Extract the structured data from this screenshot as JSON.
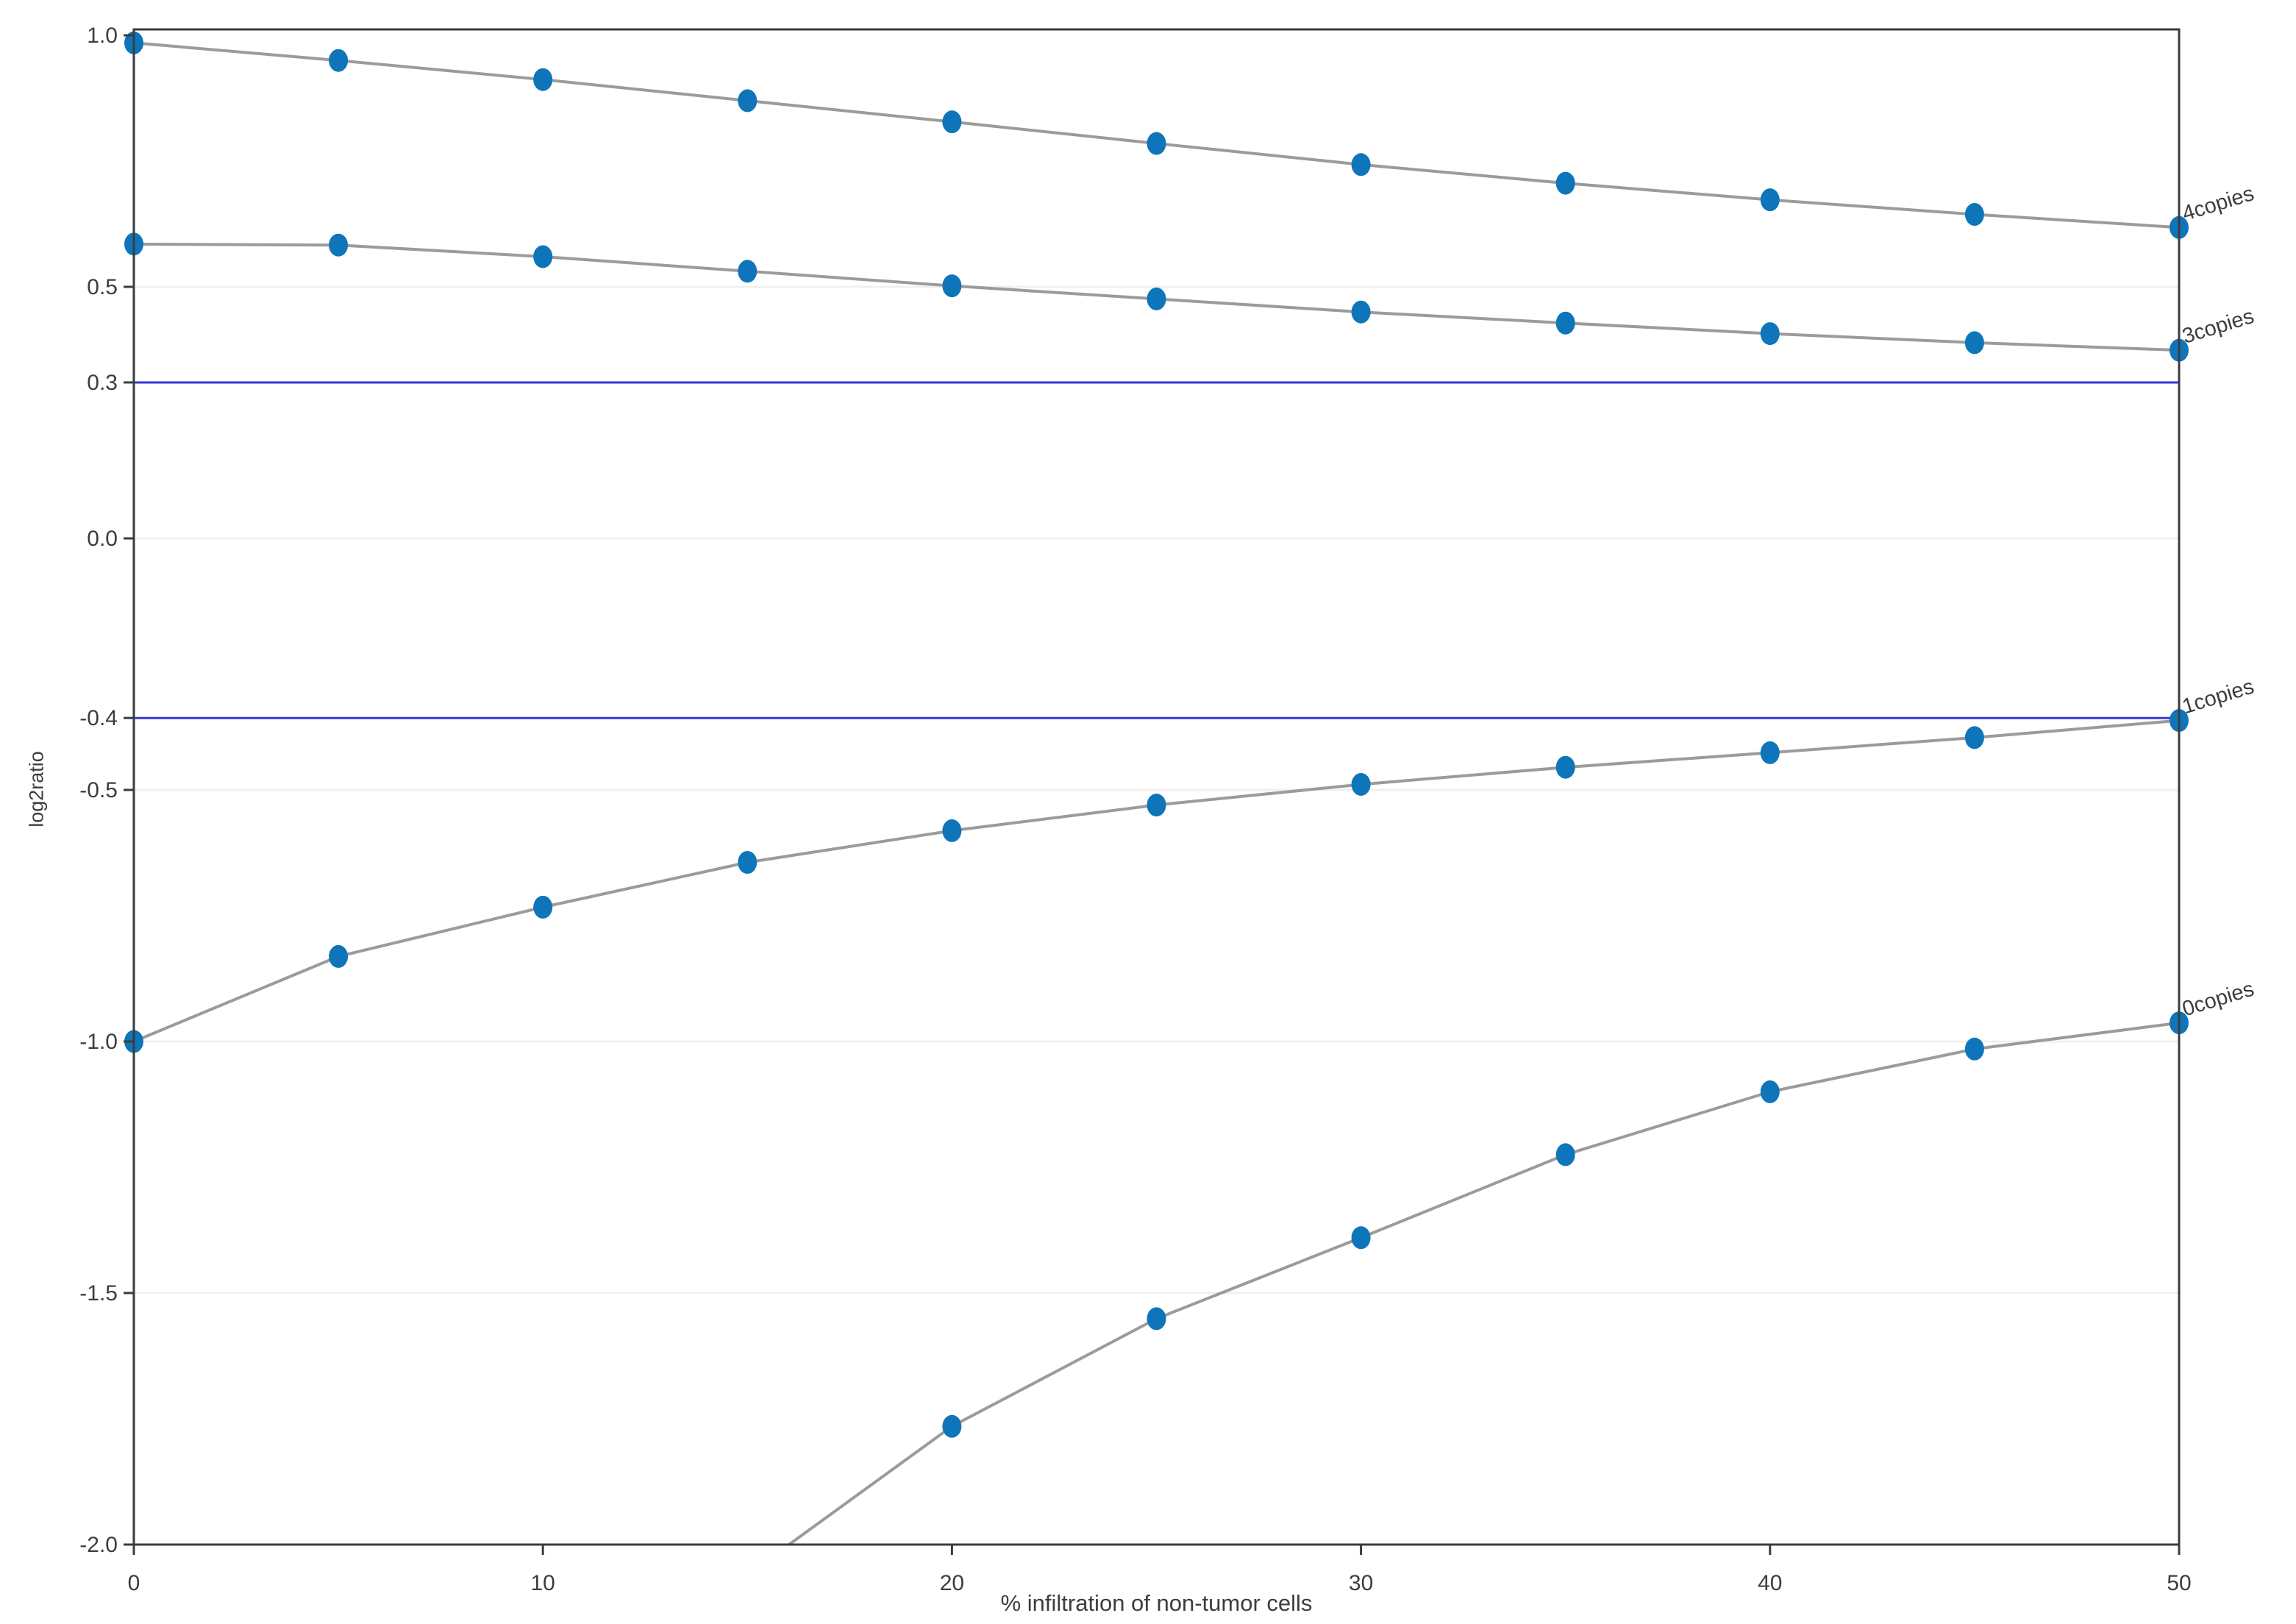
{
  "chart_data": {
    "type": "line",
    "title": "",
    "xlabel": "% infiltration of non-tumor cells",
    "ylabel": "log2ratio",
    "x": [
      0,
      5,
      10,
      15,
      20,
      25,
      30,
      35,
      40,
      45,
      50
    ],
    "xlim": [
      0,
      50
    ],
    "ylim": [
      -2.0,
      1.01
    ],
    "xticks": [
      0,
      10,
      20,
      30,
      40,
      50
    ],
    "yticks": [
      {
        "label": "1.0",
        "value": 1.0,
        "grid": false
      },
      {
        "label": "0.5",
        "value": 0.5,
        "grid": true
      },
      {
        "label": "0.0",
        "value": 0.0,
        "grid": true
      },
      {
        "label": "-0.5",
        "value": -0.5,
        "grid": true
      },
      {
        "label": "-1.0",
        "value": -1.0,
        "grid": true
      },
      {
        "label": "-1.5",
        "value": -1.5,
        "grid": true
      },
      {
        "label": "-2.0",
        "value": -2.0,
        "grid": false
      }
    ],
    "thresholds": [
      {
        "label": "0.3",
        "y": 0.31
      },
      {
        "label": "-0.4",
        "y": -0.357
      }
    ],
    "series": [
      {
        "name": "4copies",
        "values": [
          0.985,
          0.95,
          0.912,
          0.87,
          0.828,
          0.785,
          0.743,
          0.706,
          0.673,
          0.644,
          0.618
        ]
      },
      {
        "name": "3copies",
        "values": [
          0.585,
          0.583,
          0.56,
          0.531,
          0.502,
          0.476,
          0.45,
          0.428,
          0.407,
          0.389,
          0.374
        ]
      },
      {
        "name": "1copies",
        "values": [
          -1.0,
          -0.831,
          -0.733,
          -0.644,
          -0.581,
          -0.53,
          -0.489,
          -0.455,
          -0.426,
          -0.396,
          -0.362
        ]
      },
      {
        "name": "0copies",
        "values": [
          null,
          null,
          null,
          -2.06,
          -1.765,
          -1.551,
          -1.39,
          -1.225,
          -1.1,
          -1.015,
          -0.963
        ]
      }
    ],
    "legend_position": "right-of-curve-ends",
    "grid": "horizontal-only",
    "colors": {
      "curve_line": "#9b9b9b",
      "marker": "#0f75ba",
      "gridline": "#f0f0f1",
      "threshold_line": "#3636d8",
      "spine": "#3b3b3b",
      "tick_text": "#3d3d3d"
    }
  }
}
